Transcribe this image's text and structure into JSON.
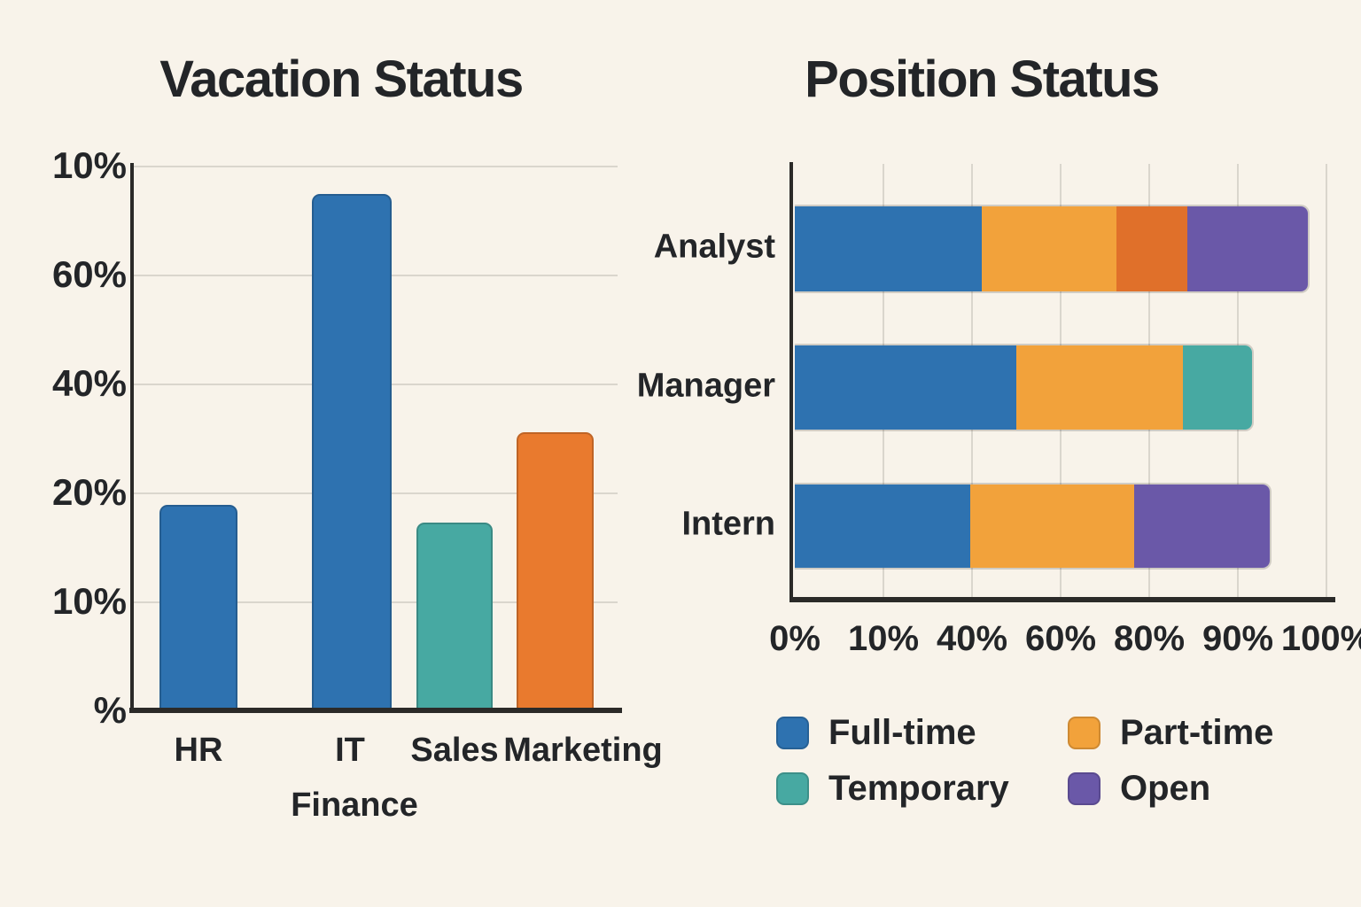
{
  "page": {
    "background": "#f8f3ea",
    "text_color": "#232528"
  },
  "colors": {
    "full_time": "#2e72b0",
    "part_time": "#f2a23b",
    "part_time_dark": "#e0702a",
    "temporary": "#47a9a2",
    "open": "#6a58a8",
    "marketing_orange": "#e97a2e",
    "grid": "#dad6cd",
    "axis": "#2b2a28"
  },
  "vacation_chart": {
    "title": "Vacation Status",
    "sub_label": "Finance"
  },
  "position_chart": {
    "title": "Position Status"
  },
  "chart_data": [
    {
      "type": "bar",
      "title": "Vacation Status",
      "categories": [
        "HR",
        "IT",
        "Sales",
        "Marketing"
      ],
      "x_sub_label": "Finance",
      "values_pct_of_axis": [
        37.7,
        94.8,
        34.5,
        51.1
      ],
      "bar_color_keys": [
        "full_time",
        "full_time",
        "temporary",
        "marketing_orange"
      ],
      "y_tick_labels_top_to_bottom": [
        "10%",
        "60%",
        "40%",
        "20%",
        "10%",
        "%"
      ],
      "grid": "horizontal",
      "legend_position": "none"
    },
    {
      "type": "stacked_bar_horizontal",
      "title": "Position Status",
      "categories": [
        "Analyst",
        "Manager",
        "Intern"
      ],
      "x_tick_labels": [
        "0%",
        "10%",
        "40%",
        "60%",
        "80%",
        "90%",
        "100%"
      ],
      "series": [
        {
          "name": "Analyst",
          "segments": [
            {
              "key": "full_time",
              "pct": 35.2
            },
            {
              "key": "part_time",
              "pct": 25.3
            },
            {
              "key": "part_time_dark",
              "pct": 13.3
            },
            {
              "key": "open",
              "pct": 22.7
            }
          ]
        },
        {
          "name": "Manager",
          "segments": [
            {
              "key": "full_time",
              "pct": 41.7
            },
            {
              "key": "part_time",
              "pct": 31.3
            },
            {
              "key": "temporary",
              "pct": 13.0
            }
          ]
        },
        {
          "name": "Intern",
          "segments": [
            {
              "key": "full_time",
              "pct": 33.0
            },
            {
              "key": "part_time",
              "pct": 30.8
            },
            {
              "key": "open",
              "pct": 25.5
            }
          ]
        }
      ],
      "legend_entries": [
        {
          "label": "Full-time",
          "key": "full_time"
        },
        {
          "label": "Part-time",
          "key": "part_time"
        },
        {
          "label": "Temporary",
          "key": "temporary"
        },
        {
          "label": "Open",
          "key": "open"
        }
      ],
      "grid": "vertical",
      "legend_position": "bottom"
    }
  ]
}
